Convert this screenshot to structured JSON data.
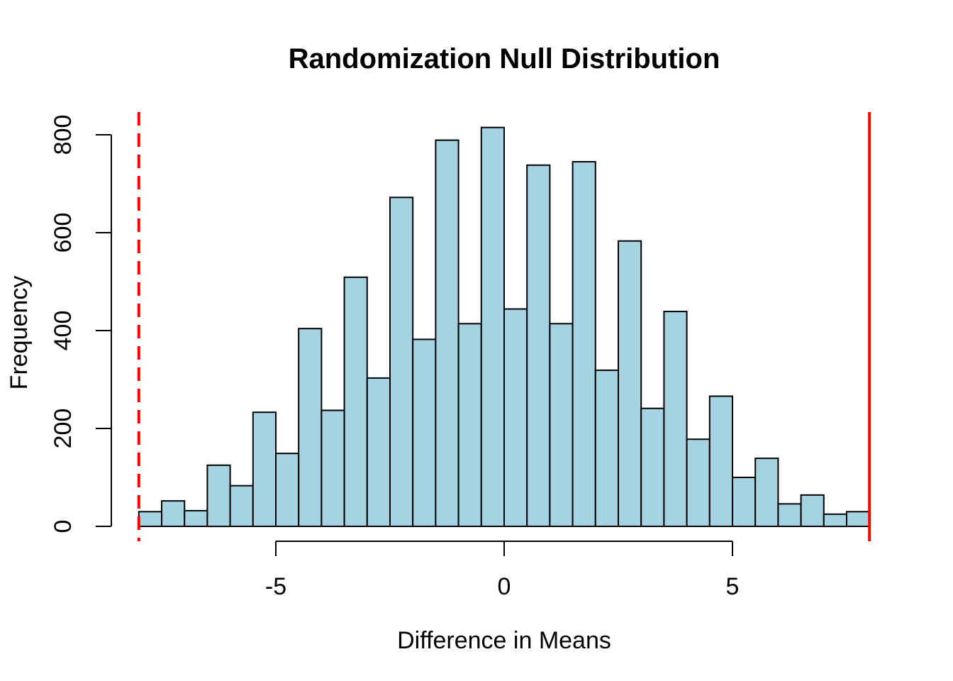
{
  "figure": {
    "background": "#FFFFFF"
  },
  "chart_data": {
    "type": "bar",
    "subtype": "histogram",
    "title": "Randomization Null Distribution",
    "xlabel": "Difference in Means",
    "ylabel": "Frequency",
    "x_ticks": [
      -5,
      0,
      5
    ],
    "y_ticks": [
      0,
      200,
      400,
      600,
      800
    ],
    "xlim": [
      -8,
      8
    ],
    "ylim": [
      0,
      800
    ],
    "grid": false,
    "legend": null,
    "bin_width": 0.5,
    "breaks": [
      -8,
      -7.5,
      -7,
      -6.5,
      -6,
      -5.5,
      -5,
      -4.5,
      -4,
      -3.5,
      -3,
      -2.5,
      -2,
      -1.5,
      -1,
      -0.5,
      0,
      0.5,
      1,
      1.5,
      2,
      2.5,
      3,
      3.5,
      4,
      4.5,
      5,
      5.5,
      6,
      6.5,
      7,
      7.5,
      8
    ],
    "counts": [
      30,
      52,
      32,
      125,
      83,
      233,
      149,
      404,
      237,
      509,
      303,
      672,
      382,
      789,
      414,
      815,
      444,
      738,
      414,
      745,
      319,
      583,
      241,
      439,
      178,
      266,
      100,
      139,
      46,
      64,
      25,
      30
    ],
    "total_replicates": 10000,
    "bar_fill": "#A5D3E2",
    "bar_stroke": "#000000",
    "vlines": [
      {
        "x": -8,
        "style": "dashed",
        "color": "#FF0000"
      },
      {
        "x": 8,
        "style": "solid",
        "color": "#FF0000"
      }
    ]
  }
}
